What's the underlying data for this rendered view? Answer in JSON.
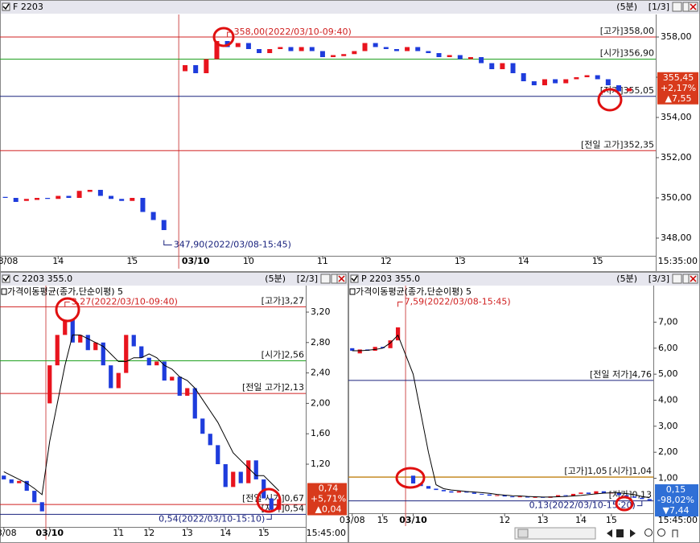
{
  "windows": [
    {
      "title": "F 2203",
      "period": "(5분)",
      "page": "[1/3]",
      "chart": {
        "type": "candlestick",
        "up_color": "#e8141e",
        "down_color": "#1e3cdc",
        "x": [
          0,
          1,
          2,
          3,
          4,
          5,
          6,
          7,
          8,
          9,
          10,
          11,
          12,
          13,
          14,
          15,
          17,
          18,
          19,
          20,
          21,
          22,
          23,
          24,
          25,
          26,
          27,
          28,
          29,
          30,
          31,
          32,
          33,
          34,
          35,
          36,
          37,
          38,
          39,
          40,
          41,
          42,
          43,
          44,
          45,
          46,
          47,
          48,
          49,
          50,
          51,
          52,
          53,
          54,
          55,
          56,
          57,
          58,
          59
        ],
        "open": [
          350.05,
          350.0,
          349.85,
          349.9,
          350.0,
          349.95,
          350.1,
          350.0,
          350.3,
          350.4,
          350.1,
          349.95,
          349.85,
          350.0,
          349.3,
          348.9,
          356.3,
          356.6,
          356.2,
          356.9,
          357.8,
          357.5,
          357.7,
          357.4,
          357.2,
          357.4,
          357.5,
          357.3,
          357.5,
          357.3,
          357.0,
          357.05,
          357.15,
          357.3,
          357.7,
          357.5,
          357.4,
          357.3,
          357.5,
          357.3,
          357.2,
          357.0,
          357.1,
          356.9,
          357.0,
          356.7,
          356.4,
          356.7,
          356.2,
          355.8,
          355.6,
          355.9,
          355.7,
          355.9,
          356.0,
          356.1,
          355.9,
          355.6,
          355.3
        ],
        "close": [
          350.0,
          349.8,
          349.95,
          350.0,
          349.95,
          350.1,
          350.0,
          350.35,
          350.4,
          350.1,
          349.95,
          349.85,
          350.0,
          349.3,
          348.9,
          348.4,
          356.6,
          356.2,
          356.9,
          357.8,
          357.5,
          357.7,
          357.4,
          357.2,
          357.4,
          357.5,
          357.3,
          357.5,
          357.3,
          357.0,
          357.1,
          357.15,
          357.3,
          357.7,
          357.5,
          357.4,
          357.3,
          357.5,
          357.3,
          357.2,
          357.0,
          357.1,
          356.9,
          357.0,
          356.7,
          356.4,
          356.7,
          356.2,
          355.8,
          355.6,
          355.9,
          355.7,
          355.9,
          356.0,
          356.1,
          355.9,
          355.6,
          355.3,
          355.45
        ],
        "xlim": [
          0,
          62
        ],
        "xticks": [
          {
            "value": 0,
            "label": "03/08"
          },
          {
            "value": 5,
            "label": "14"
          },
          {
            "value": 12,
            "label": "15"
          },
          {
            "value": 18,
            "label": "03/10"
          },
          {
            "value": 23,
            "label": "10"
          },
          {
            "value": 30,
            "label": "11"
          },
          {
            "value": 36,
            "label": "12"
          },
          {
            "value": 43,
            "label": "13"
          },
          {
            "value": 49,
            "label": "14"
          },
          {
            "value": 56,
            "label": "15"
          }
        ],
        "ylim": [
          347.12,
          359.12
        ],
        "yticks": [
          {
            "value": 348,
            "label": "348,00"
          },
          {
            "value": 350,
            "label": "350,00"
          },
          {
            "value": 352,
            "label": "352,00"
          },
          {
            "value": 354,
            "label": "354,00"
          },
          {
            "value": 356,
            "label": "356,00"
          },
          {
            "value": 358,
            "label": "358,00"
          }
        ],
        "levels": [
          {
            "value": 358,
            "label": "[고가]358,00",
            "color": "#d02020"
          },
          {
            "value": 356.9,
            "label": "[시가]356,90",
            "color": "#20a020"
          },
          {
            "value": 355.05,
            "label": "[저가]355,05",
            "color": "#1a237e"
          },
          {
            "value": 352.35,
            "label": "[전일 고가]352,35",
            "color": "#d02020"
          }
        ],
        "annotations": [
          {
            "x": 21,
            "value": 358,
            "label": "358,00(2022/03/10-09:40)",
            "color": "#d02020",
            "side": "above"
          },
          {
            "x": 15,
            "value": 347.9,
            "label": "347,90(2022/03/08-15:45)",
            "color": "#1a237e",
            "side": "below"
          }
        ],
        "day_break": 16.4,
        "time_label": "15:35:00",
        "last": {
          "price": "355,45",
          "change": "+2,17%",
          "diff": "▲7,55",
          "color": "#d83a1c"
        }
      }
    },
    {
      "title": "C 2203 355.0",
      "period": "(5분)",
      "page": "[2/3]",
      "chart": {
        "type": "candlestick",
        "up_color": "#e8141e",
        "down_color": "#1e3cdc",
        "ma_label": "가격이동평균(종가,단순이평) 5",
        "x": [
          0,
          1,
          2,
          3,
          4,
          5,
          6,
          7,
          8,
          9,
          10,
          11,
          12,
          13,
          14,
          15,
          16,
          17,
          18,
          19,
          20,
          21,
          22,
          23,
          24,
          25,
          26,
          27,
          28,
          29,
          30,
          31,
          32,
          33,
          34,
          35,
          36
        ],
        "open": [
          1.05,
          1.0,
          0.95,
          0.98,
          0.85,
          0.7,
          2.0,
          2.5,
          2.9,
          3.1,
          2.8,
          2.9,
          2.7,
          2.8,
          2.5,
          2.2,
          2.4,
          2.9,
          2.75,
          2.6,
          2.5,
          2.55,
          2.3,
          2.35,
          2.1,
          2.2,
          1.8,
          1.6,
          1.45,
          1.2,
          0.9,
          1.1,
          0.95,
          1.25,
          1.0,
          0.75,
          0.6
        ],
        "close": [
          1.0,
          0.95,
          0.98,
          0.85,
          0.7,
          0.58,
          2.5,
          2.9,
          3.1,
          2.8,
          2.9,
          2.7,
          2.8,
          2.5,
          2.2,
          2.4,
          2.9,
          2.75,
          2.6,
          2.5,
          2.55,
          2.3,
          2.35,
          2.1,
          2.2,
          1.8,
          1.6,
          1.45,
          1.2,
          0.9,
          1.1,
          0.95,
          1.25,
          1.0,
          0.75,
          0.6,
          0.74
        ],
        "ma": [
          1.1,
          1.05,
          1.0,
          0.95,
          0.88,
          0.8,
          1.5,
          2.0,
          2.5,
          2.9,
          2.9,
          2.85,
          2.8,
          2.75,
          2.65,
          2.55,
          2.55,
          2.6,
          2.6,
          2.65,
          2.6,
          2.5,
          2.45,
          2.35,
          2.3,
          2.2,
          2.05,
          1.9,
          1.75,
          1.55,
          1.35,
          1.25,
          1.15,
          1.05,
          1.05,
          0.95,
          0.85
        ],
        "xlim": [
          0,
          40
        ],
        "xticks": [
          {
            "value": 0,
            "label": "03/08"
          },
          {
            "value": 6,
            "label": "03/10"
          },
          {
            "value": 15,
            "label": "11"
          },
          {
            "value": 19,
            "label": "12"
          },
          {
            "value": 24,
            "label": "13"
          },
          {
            "value": 29,
            "label": "14"
          },
          {
            "value": 34,
            "label": "15"
          }
        ],
        "ylim": [
          0.375,
          3.549
        ],
        "yticks": [
          {
            "value": 1.2,
            "label": "1,20"
          },
          {
            "value": 1.6,
            "label": "1,60"
          },
          {
            "value": 2,
            "label": "2,00"
          },
          {
            "value": 2.4,
            "label": "2,40"
          },
          {
            "value": 2.8,
            "label": "2,80"
          },
          {
            "value": 3.2,
            "label": "3,20"
          }
        ],
        "levels": [
          {
            "value": 3.27,
            "label": "[고가]3,27",
            "color": "#d02020"
          },
          {
            "value": 2.56,
            "label": "[시가]2,56",
            "color": "#20a020"
          },
          {
            "value": 2.13,
            "label": "[전일 고가]2,13",
            "color": "#d02020"
          },
          {
            "value": 0.67,
            "label": "[전일 시가]0,67",
            "color": "#d02020"
          },
          {
            "value": 0.54,
            "label": "[저가]0,54",
            "color": "#1a237e"
          }
        ],
        "annotations": [
          {
            "x": 8,
            "value": 3.27,
            "label": "3,27(2022/03/10-09:40)",
            "color": "#d02020",
            "side": "above"
          },
          {
            "x": 35,
            "value": 0.54,
            "label": "0,54(2022/03/10-15:10)",
            "color": "#1a237e",
            "side": "left"
          }
        ],
        "day_break": 5.5,
        "time_label": "15:45:00",
        "last": {
          "price": "0,74",
          "change": "+5,71%",
          "diff": "▲0,04",
          "color": "#d83a1c"
        }
      }
    },
    {
      "title": "P 2203 355.0",
      "period": "(5분)",
      "page": "[3/3]",
      "chart": {
        "type": "candlestick",
        "up_color": "#e8141e",
        "down_color": "#1e3cdc",
        "ma_label": "가격이동평균(종가,단순이평) 5",
        "x": [
          0,
          1,
          2,
          3,
          4,
          5,
          6,
          8,
          9,
          10,
          11,
          12,
          13,
          14,
          15,
          16,
          17,
          18,
          19,
          20,
          21,
          22,
          23,
          24,
          25,
          26,
          27,
          28,
          29,
          30,
          31,
          32,
          33,
          34,
          35,
          36,
          37,
          38,
          39
        ],
        "open": [
          6.0,
          5.8,
          5.95,
          5.9,
          6.05,
          6.0,
          6.3,
          1.1,
          0.8,
          0.7,
          0.6,
          0.55,
          0.5,
          0.45,
          0.5,
          0.45,
          0.4,
          0.38,
          0.33,
          0.35,
          0.3,
          0.28,
          0.3,
          0.26,
          0.28,
          0.25,
          0.3,
          0.35,
          0.32,
          0.4,
          0.45,
          0.4,
          0.5,
          0.42,
          0.45,
          0.35,
          0.3,
          0.25,
          0.2
        ],
        "close": [
          5.9,
          5.95,
          5.9,
          6.05,
          6.0,
          6.3,
          6.8,
          0.8,
          0.7,
          0.6,
          0.55,
          0.5,
          0.45,
          0.5,
          0.45,
          0.4,
          0.38,
          0.33,
          0.35,
          0.3,
          0.28,
          0.3,
          0.26,
          0.28,
          0.25,
          0.3,
          0.35,
          0.32,
          0.4,
          0.45,
          0.4,
          0.5,
          0.42,
          0.45,
          0.35,
          0.3,
          0.25,
          0.2,
          0.15
        ],
        "ma": [
          5.9,
          5.9,
          5.92,
          5.95,
          6.0,
          6.2,
          6.5,
          5.0,
          3.5,
          2.0,
          0.75,
          0.6,
          0.55,
          0.52,
          0.49,
          0.47,
          0.45,
          0.42,
          0.38,
          0.35,
          0.33,
          0.32,
          0.3,
          0.29,
          0.28,
          0.28,
          0.29,
          0.3,
          0.32,
          0.34,
          0.37,
          0.4,
          0.43,
          0.44,
          0.44,
          0.41,
          0.37,
          0.3,
          0.25
        ],
        "xlim": [
          0,
          40
        ],
        "xticks": [
          {
            "value": 0,
            "label": "03/08"
          },
          {
            "value": 4,
            "label": "15"
          },
          {
            "value": 8,
            "label": "03/10"
          },
          {
            "value": 20,
            "label": "12"
          },
          {
            "value": 25,
            "label": "13"
          },
          {
            "value": 30,
            "label": "14"
          },
          {
            "value": 34,
            "label": "15"
          }
        ],
        "ylim": [
          -0.344,
          8.406
        ],
        "yticks": [
          {
            "value": 1,
            "label": "1,00"
          },
          {
            "value": 2,
            "label": "2,00"
          },
          {
            "value": 3,
            "label": "3,00"
          },
          {
            "value": 4,
            "label": "4,00"
          },
          {
            "value": 5,
            "label": "5,00"
          },
          {
            "value": 6,
            "label": "6,00"
          },
          {
            "value": 7,
            "label": "7,00"
          }
        ],
        "levels": [
          {
            "value": 4.76,
            "label": "[전일 저가]4,76",
            "color": "#1a237e"
          },
          {
            "value": 1.04,
            "label": "[시가]1,04",
            "color": "#c08010"
          },
          {
            "value": 1.05,
            "label": "[고가]1,05",
            "color": "#c08010"
          },
          {
            "value": 0.13,
            "label": "[저가]0,13",
            "color": "#1a237e"
          }
        ],
        "annotations": [
          {
            "x": 6,
            "value": 7.59,
            "label": "7,59(2022/03/08-15:45)",
            "color": "#d02020",
            "side": "above"
          },
          {
            "x": 38,
            "value": 0.13,
            "label": "0,13(2022/03/10-15:20)",
            "color": "#1a237e",
            "side": "left"
          }
        ],
        "day_break": 7,
        "time_label": "15:45:00",
        "last": {
          "price": "0,15",
          "change": "-98,02%",
          "diff": "▼7,44",
          "color": "#2f6fd6"
        }
      }
    }
  ]
}
